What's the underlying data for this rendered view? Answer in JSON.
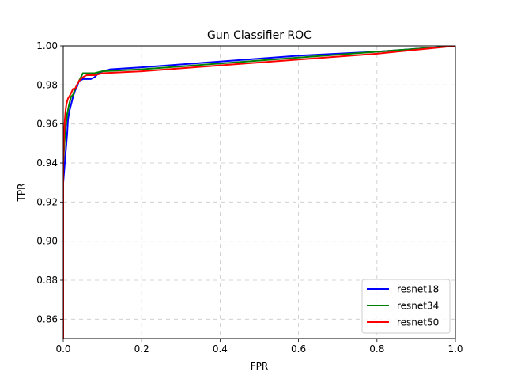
{
  "chart_data": {
    "type": "line",
    "title": "Gun Classifier ROC",
    "xlabel": "FPR",
    "ylabel": "TPR",
    "xlim": [
      0.0,
      1.0
    ],
    "ylim": [
      0.85,
      1.0
    ],
    "xticks": [
      0.0,
      0.2,
      0.4,
      0.6,
      0.8,
      1.0
    ],
    "xtick_labels": [
      "0.0",
      "0.2",
      "0.4",
      "0.6",
      "0.8",
      "1.0"
    ],
    "yticks": [
      0.86,
      0.88,
      0.9,
      0.92,
      0.94,
      0.96,
      0.98,
      1.0
    ],
    "ytick_labels": [
      "0.86",
      "0.88",
      "0.90",
      "0.92",
      "0.94",
      "0.96",
      "0.98",
      "1.00"
    ],
    "grid": true,
    "legend_position": "lower-right",
    "series": [
      {
        "name": "resnet18",
        "color": "#0000ff",
        "x": [
          0.0,
          0.0,
          0.002,
          0.004,
          0.006,
          0.008,
          0.01,
          0.012,
          0.015,
          0.02,
          0.025,
          0.03,
          0.035,
          0.04,
          0.05,
          0.06,
          0.07,
          0.08,
          0.09,
          0.1,
          0.12,
          0.2,
          0.4,
          0.6,
          0.8,
          1.0
        ],
        "y": [
          0.85,
          0.93,
          0.935,
          0.94,
          0.945,
          0.95,
          0.955,
          0.962,
          0.966,
          0.97,
          0.974,
          0.977,
          0.979,
          0.982,
          0.983,
          0.983,
          0.983,
          0.984,
          0.986,
          0.987,
          0.988,
          0.989,
          0.992,
          0.995,
          0.997,
          1.0
        ]
      },
      {
        "name": "resnet34",
        "color": "#008000",
        "x": [
          0.0,
          0.0,
          0.003,
          0.006,
          0.01,
          0.015,
          0.02,
          0.025,
          0.03,
          0.04,
          0.05,
          0.06,
          0.08,
          0.1,
          0.2,
          0.4,
          0.6,
          0.8,
          1.0
        ],
        "y": [
          0.85,
          0.94,
          0.95,
          0.958,
          0.965,
          0.97,
          0.974,
          0.975,
          0.978,
          0.982,
          0.986,
          0.986,
          0.986,
          0.987,
          0.988,
          0.991,
          0.994,
          0.997,
          1.0
        ]
      },
      {
        "name": "resnet50",
        "color": "#ff0000",
        "x": [
          0.0,
          0.0,
          0.002,
          0.004,
          0.006,
          0.008,
          0.012,
          0.018,
          0.025,
          0.03,
          0.04,
          0.05,
          0.06,
          0.08,
          0.1,
          0.2,
          0.4,
          0.6,
          0.8,
          1.0
        ],
        "y": [
          0.85,
          0.94,
          0.955,
          0.962,
          0.967,
          0.97,
          0.973,
          0.975,
          0.978,
          0.978,
          0.982,
          0.984,
          0.985,
          0.985,
          0.986,
          0.987,
          0.99,
          0.993,
          0.996,
          1.0
        ]
      }
    ]
  }
}
